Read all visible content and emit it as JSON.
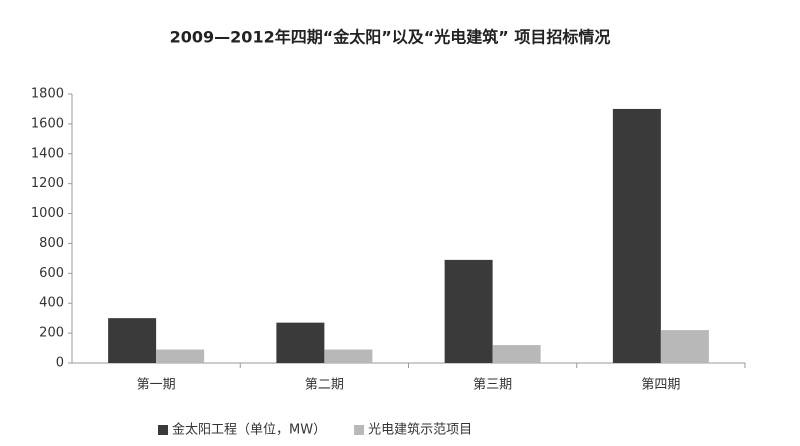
{
  "chart_data": {
    "type": "bar",
    "title": "2009—2012年四期“金太阳”以及“光电建筑” 项目招标情况",
    "categories": [
      "第一期",
      "第二期",
      "第三期",
      "第四期"
    ],
    "series": [
      {
        "name": "金太阳工程（单位，MW）",
        "color": "#3a3a3a",
        "values": [
          300,
          270,
          690,
          1700
        ]
      },
      {
        "name": "光电建筑示范项目",
        "color": "#b8b8b8",
        "values": [
          90,
          90,
          120,
          220
        ]
      }
    ],
    "ylim": [
      0,
      1800
    ],
    "yticks": [
      0,
      200,
      400,
      600,
      800,
      1000,
      1200,
      1400,
      1600,
      1800
    ],
    "grid": false,
    "legend": "bottom"
  }
}
